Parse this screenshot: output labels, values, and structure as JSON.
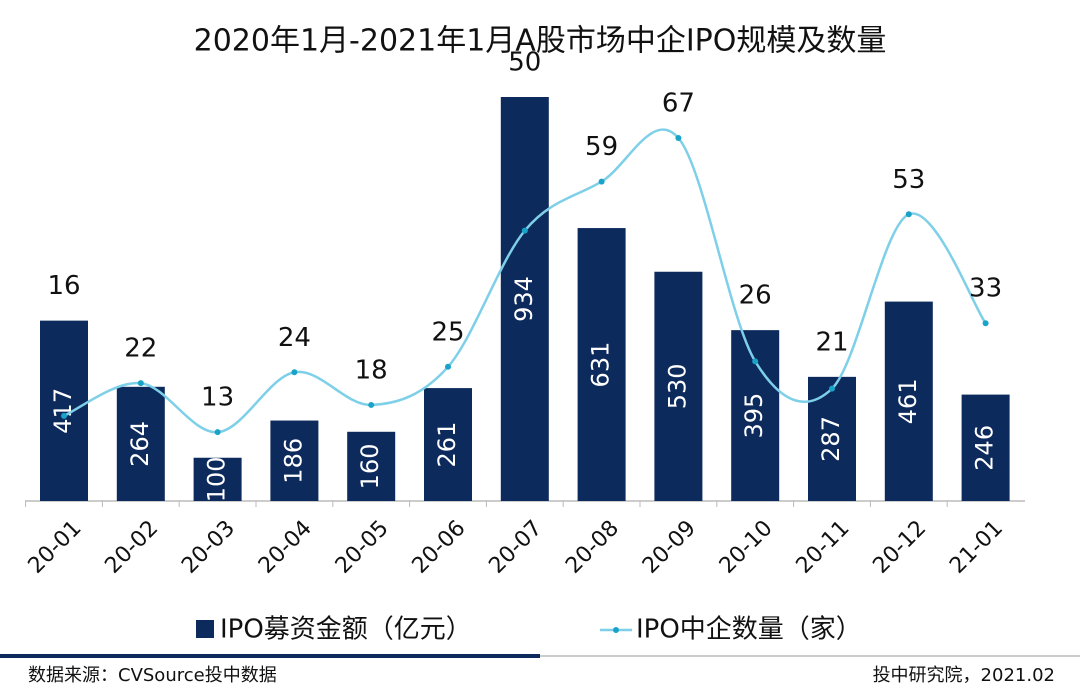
{
  "chart_data": {
    "type": "bar",
    "title": "2020年1月-2021年1月A股市场中企IPO规模及数量",
    "categories": [
      "20-01",
      "20-02",
      "20-03",
      "20-04",
      "20-05",
      "20-06",
      "20-07",
      "20-08",
      "20-09",
      "20-10",
      "20-11",
      "20-12",
      "21-01"
    ],
    "series": [
      {
        "name": "IPO募资金额（亿元）",
        "type": "bar",
        "color": "#0d2a5c",
        "values": [
          417,
          264,
          100,
          186,
          160,
          261,
          934,
          631,
          530,
          395,
          287,
          461,
          246
        ]
      },
      {
        "name": "IPO中企数量（家）",
        "type": "line",
        "color": "#7ecfe8",
        "values": [
          16,
          22,
          13,
          24,
          18,
          25,
          50,
          59,
          67,
          26,
          21,
          53,
          33
        ]
      }
    ]
  },
  "footer": {
    "source": "数据来源：CVSource投中数据",
    "credit": "投中研究院，2021.02"
  }
}
